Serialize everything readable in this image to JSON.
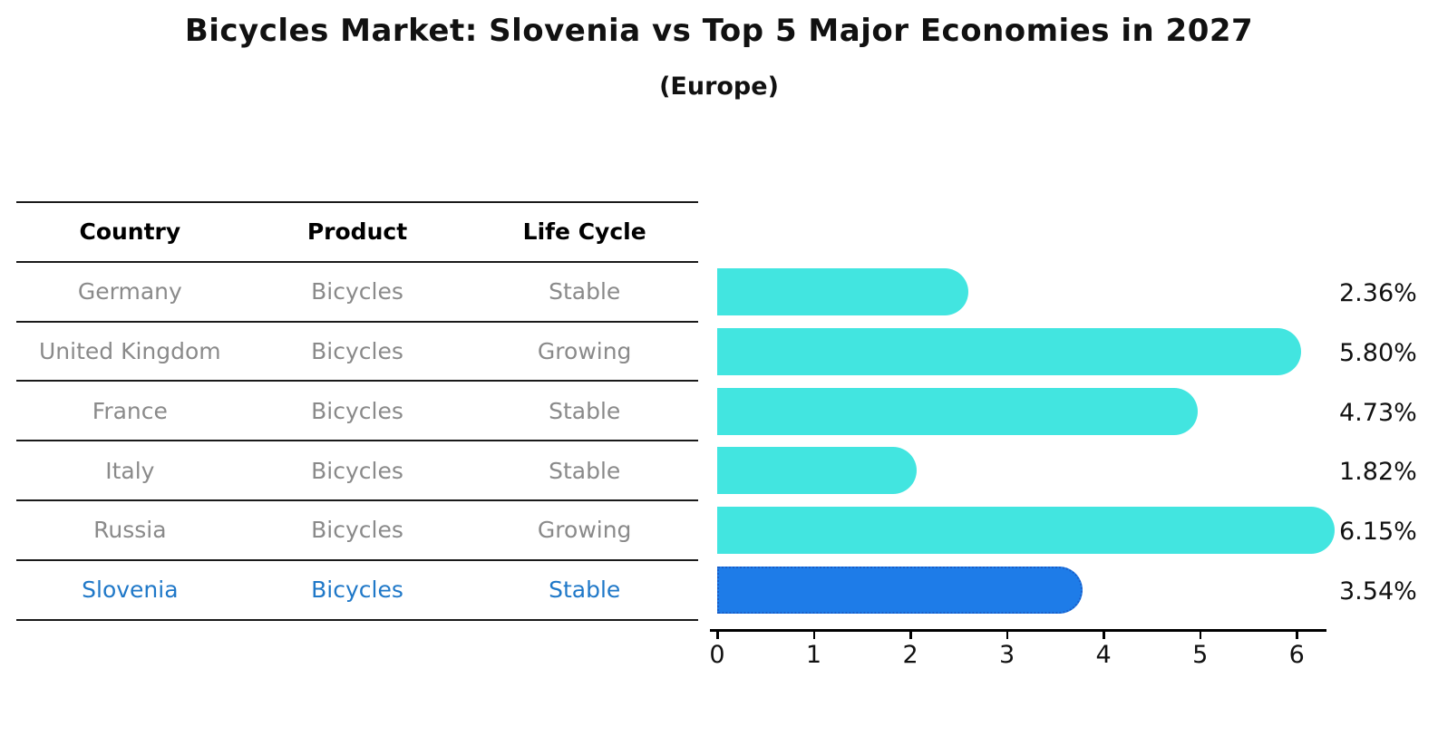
{
  "chart_data": {
    "type": "bar",
    "orientation": "horizontal",
    "title": "Bicycles Market: Slovenia vs Top 5 Major Economies in 2027",
    "subtitle": "(Europe)",
    "table": {
      "headers": [
        "Country",
        "Product",
        "Life Cycle"
      ],
      "rows": [
        {
          "country": "Germany",
          "product": "Bicycles",
          "life_cycle": "Stable",
          "value": 2.36,
          "label": "2.36%",
          "highlight": false
        },
        {
          "country": "United Kingdom",
          "product": "Bicycles",
          "life_cycle": "Growing",
          "value": 5.8,
          "label": "5.80%",
          "highlight": false
        },
        {
          "country": "France",
          "product": "Bicycles",
          "life_cycle": "Stable",
          "value": 4.73,
          "label": "4.73%",
          "highlight": false
        },
        {
          "country": "Italy",
          "product": "Bicycles",
          "life_cycle": "Stable",
          "value": 1.82,
          "label": "1.82%",
          "highlight": false
        },
        {
          "country": "Russia",
          "product": "Bicycles",
          "life_cycle": "Growing",
          "value": 6.15,
          "label": "6.15%",
          "highlight": false
        },
        {
          "country": "Slovenia",
          "product": "Bicycles",
          "life_cycle": "Stable",
          "value": 3.54,
          "label": "3.54%",
          "highlight": true
        }
      ]
    },
    "x_ticks": [
      0,
      1,
      2,
      3,
      4,
      5,
      6
    ],
    "xlim": [
      0,
      6.28
    ],
    "grid": false,
    "legend": "none",
    "colors": {
      "bar": "#42E5E0",
      "highlight_bar": "#1E7CE8",
      "highlight_border": "#1A5EC8",
      "highlight_text": "#1F78C8",
      "row_text": "#8A8A8A",
      "header_text": "#000000",
      "value_text": "#111111",
      "axis": "#000000"
    }
  }
}
